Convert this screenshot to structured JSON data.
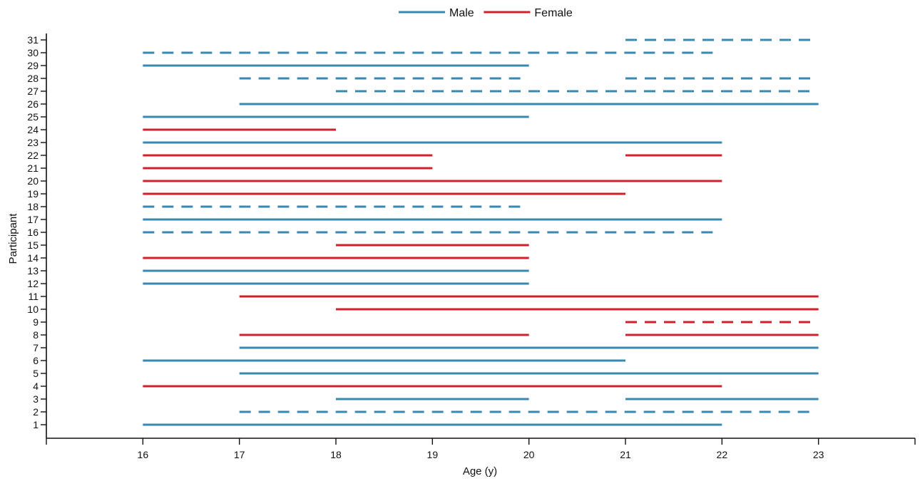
{
  "chart_data": {
    "type": "timeline",
    "title": "",
    "xlabel": "Age (y)",
    "ylabel": "Participant",
    "xlim": [
      15,
      24
    ],
    "ylim": [
      0,
      31
    ],
    "xticks": [
      16,
      17,
      18,
      19,
      20,
      21,
      22,
      23
    ],
    "yticks": [
      1,
      2,
      3,
      4,
      5,
      6,
      7,
      8,
      9,
      10,
      11,
      12,
      13,
      14,
      15,
      16,
      17,
      18,
      19,
      20,
      21,
      22,
      23,
      24,
      25,
      26,
      27,
      28,
      29,
      30,
      31
    ],
    "grid": false,
    "legend_position": "top-center",
    "colors": {
      "Male": "#3a87b0",
      "Female": "#d0202e"
    },
    "legend": [
      {
        "name": "Male",
        "color": "#3a87b0"
      },
      {
        "name": "Female",
        "color": "#d0202e"
      }
    ],
    "segments": [
      {
        "participant": 1,
        "sex": "Male",
        "start": 16,
        "end": 22,
        "style": "solid"
      },
      {
        "participant": 2,
        "sex": "Male",
        "start": 17,
        "end": 23,
        "style": "dashed"
      },
      {
        "participant": 3,
        "sex": "Male",
        "start": 18,
        "end": 20,
        "style": "solid"
      },
      {
        "participant": 3,
        "sex": "Male",
        "start": 21,
        "end": 23,
        "style": "solid"
      },
      {
        "participant": 4,
        "sex": "Female",
        "start": 16,
        "end": 22,
        "style": "solid"
      },
      {
        "participant": 5,
        "sex": "Male",
        "start": 17,
        "end": 23,
        "style": "solid"
      },
      {
        "participant": 6,
        "sex": "Male",
        "start": 16,
        "end": 21,
        "style": "solid"
      },
      {
        "participant": 7,
        "sex": "Male",
        "start": 17,
        "end": 23,
        "style": "solid"
      },
      {
        "participant": 8,
        "sex": "Female",
        "start": 17,
        "end": 20,
        "style": "solid"
      },
      {
        "participant": 8,
        "sex": "Female",
        "start": 21,
        "end": 23,
        "style": "solid"
      },
      {
        "participant": 9,
        "sex": "Female",
        "start": 21,
        "end": 23,
        "style": "dashed"
      },
      {
        "participant": 10,
        "sex": "Female",
        "start": 18,
        "end": 23,
        "style": "solid"
      },
      {
        "participant": 11,
        "sex": "Female",
        "start": 17,
        "end": 23,
        "style": "solid"
      },
      {
        "participant": 12,
        "sex": "Male",
        "start": 16,
        "end": 20,
        "style": "solid"
      },
      {
        "participant": 13,
        "sex": "Male",
        "start": 16,
        "end": 20,
        "style": "solid"
      },
      {
        "participant": 14,
        "sex": "Female",
        "start": 16,
        "end": 20,
        "style": "solid"
      },
      {
        "participant": 15,
        "sex": "Female",
        "start": 18,
        "end": 20,
        "style": "solid"
      },
      {
        "participant": 16,
        "sex": "Male",
        "start": 16,
        "end": 22,
        "style": "dashed"
      },
      {
        "participant": 17,
        "sex": "Male",
        "start": 16,
        "end": 22,
        "style": "solid"
      },
      {
        "participant": 18,
        "sex": "Male",
        "start": 16,
        "end": 20,
        "style": "dashed"
      },
      {
        "participant": 19,
        "sex": "Female",
        "start": 16,
        "end": 21,
        "style": "solid"
      },
      {
        "participant": 20,
        "sex": "Female",
        "start": 16,
        "end": 22,
        "style": "solid"
      },
      {
        "participant": 21,
        "sex": "Female",
        "start": 16,
        "end": 19,
        "style": "solid"
      },
      {
        "participant": 22,
        "sex": "Female",
        "start": 16,
        "end": 19,
        "style": "solid"
      },
      {
        "participant": 22,
        "sex": "Female",
        "start": 21,
        "end": 22,
        "style": "solid"
      },
      {
        "participant": 23,
        "sex": "Male",
        "start": 16,
        "end": 22,
        "style": "solid"
      },
      {
        "participant": 24,
        "sex": "Female",
        "start": 16,
        "end": 18,
        "style": "solid"
      },
      {
        "participant": 25,
        "sex": "Male",
        "start": 16,
        "end": 20,
        "style": "solid"
      },
      {
        "participant": 26,
        "sex": "Male",
        "start": 17,
        "end": 23,
        "style": "solid"
      },
      {
        "participant": 27,
        "sex": "Male",
        "start": 18,
        "end": 23,
        "style": "dashed"
      },
      {
        "participant": 28,
        "sex": "Male",
        "start": 17,
        "end": 20,
        "style": "dashed"
      },
      {
        "participant": 28,
        "sex": "Male",
        "start": 21,
        "end": 23,
        "style": "dashed"
      },
      {
        "participant": 29,
        "sex": "Male",
        "start": 16,
        "end": 20,
        "style": "solid"
      },
      {
        "participant": 30,
        "sex": "Male",
        "start": 16,
        "end": 22,
        "style": "dashed"
      },
      {
        "participant": 31,
        "sex": "Male",
        "start": 21,
        "end": 23,
        "style": "dashed"
      }
    ]
  }
}
